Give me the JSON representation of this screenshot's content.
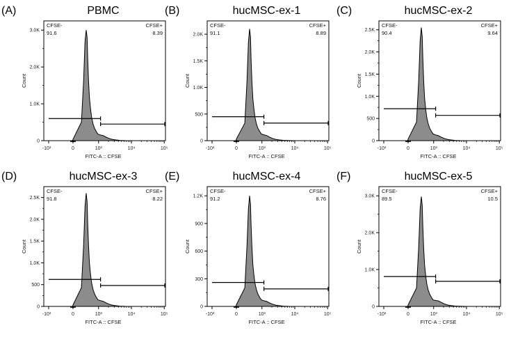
{
  "chart_data": [
    {
      "type": "histogram",
      "panel_label": "(A)",
      "title": "PBMC",
      "xlabel": "FITC-A :: CFSE",
      "ylabel": "Count",
      "x_scale": "biexponential",
      "x_ticks": [
        "-10³",
        "0",
        "10³",
        "10⁴",
        "10⁵"
      ],
      "y_ticks": [
        "0",
        "1.0K",
        "2.0K",
        "3.0K"
      ],
      "y_tick_values": [
        0,
        1000,
        2000,
        3000
      ],
      "ylim": [
        0,
        3250
      ],
      "histogram_fill": "#8c8c8c",
      "histogram": {
        "x": [
          -10,
          -3,
          0,
          120,
          170,
          210,
          245,
          275,
          300,
          330,
          370,
          420,
          480,
          560,
          660,
          800,
          950,
          1150,
          1400,
          1700,
          2100,
          2600,
          3300,
          4500,
          6500,
          10000
        ],
        "y": [
          0,
          10,
          40,
          500,
          1600,
          2700,
          3000,
          2800,
          2200,
          1600,
          1150,
          850,
          620,
          450,
          330,
          240,
          175,
          155,
          135,
          95,
          60,
          35,
          20,
          8,
          2,
          0
        ]
      },
      "gates": [
        {
          "name": "CFSE-",
          "value": "91.6",
          "x_range": [
            -1000,
            1150
          ],
          "y": 600
        },
        {
          "name": "CFSE+",
          "value": "8.39",
          "x_range": [
            1150,
            200000
          ],
          "y": 450
        }
      ]
    },
    {
      "type": "histogram",
      "panel_label": "(B)",
      "title": "hucMSC-ex-1",
      "xlabel": "FITC-A :: CFSE",
      "ylabel": "Count",
      "x_scale": "biexponential",
      "x_ticks": [
        "-10³",
        "0",
        "10³",
        "10⁴",
        "10⁵"
      ],
      "y_ticks": [
        "0",
        "500",
        "1.0K",
        "1.5K",
        "2.0K"
      ],
      "y_tick_values": [
        0,
        500,
        1000,
        1500,
        2000
      ],
      "ylim": [
        0,
        2250
      ],
      "histogram_fill": "#8c8c8c",
      "histogram": {
        "x": [
          -10,
          -3,
          0,
          120,
          170,
          210,
          245,
          275,
          300,
          330,
          370,
          420,
          480,
          560,
          660,
          800,
          950,
          1150,
          1400,
          1700,
          2100,
          2600,
          3300,
          4500,
          6500,
          10000
        ],
        "y": [
          0,
          8,
          30,
          330,
          1100,
          1850,
          2100,
          1950,
          1500,
          1100,
          790,
          590,
          430,
          310,
          230,
          170,
          125,
          110,
          95,
          68,
          42,
          25,
          14,
          6,
          2,
          0
        ]
      },
      "gates": [
        {
          "name": "CFSE-",
          "value": "91.1",
          "x_range": [
            -1000,
            1150
          ],
          "y": 450
        },
        {
          "name": "CFSE+",
          "value": "8.89",
          "x_range": [
            1150,
            200000
          ],
          "y": 330
        }
      ]
    },
    {
      "type": "histogram",
      "panel_label": "(C)",
      "title": "hucMSC-ex-2",
      "xlabel": "FITC-A :: CFSE",
      "ylabel": "Count",
      "x_scale": "biexponential",
      "x_ticks": [
        "-10³",
        "0",
        "10³",
        "10⁴",
        "10⁵"
      ],
      "y_ticks": [
        "0",
        "500",
        "1.0K",
        "1.5K",
        "2.0K",
        "2.5K"
      ],
      "y_tick_values": [
        0,
        500,
        1000,
        1500,
        2000,
        2500
      ],
      "ylim": [
        0,
        2700
      ],
      "histogram_fill": "#8c8c8c",
      "histogram": {
        "x": [
          -10,
          -3,
          0,
          120,
          170,
          210,
          245,
          275,
          300,
          330,
          370,
          420,
          480,
          560,
          660,
          800,
          950,
          1150,
          1400,
          1700,
          2100,
          2600,
          3300,
          4500,
          6500,
          10000
        ],
        "y": [
          0,
          10,
          35,
          420,
          1350,
          2250,
          2550,
          2350,
          1850,
          1350,
          960,
          710,
          520,
          380,
          280,
          205,
          150,
          130,
          112,
          80,
          50,
          30,
          17,
          7,
          2,
          0
        ]
      },
      "gates": [
        {
          "name": "CFSE-",
          "value": "90.4",
          "x_range": [
            -1000,
            1150
          ],
          "y": 720
        },
        {
          "name": "CFSE+",
          "value": "9.64",
          "x_range": [
            1150,
            200000
          ],
          "y": 570
        }
      ]
    },
    {
      "type": "histogram",
      "panel_label": "(D)",
      "title": "hucMSC-ex-3",
      "xlabel": "FITC-A :: CFSE",
      "ylabel": "Count",
      "x_scale": "biexponential",
      "x_ticks": [
        "-10³",
        "0",
        "10³",
        "10⁴",
        "10⁵"
      ],
      "y_ticks": [
        "0",
        "500",
        "1.0K",
        "1.5K",
        "2.0K",
        "2.5K"
      ],
      "y_tick_values": [
        0,
        500,
        1000,
        1500,
        2000,
        2500
      ],
      "ylim": [
        0,
        2750
      ],
      "histogram_fill": "#8c8c8c",
      "histogram": {
        "x": [
          -10,
          -3,
          0,
          120,
          170,
          210,
          245,
          275,
          300,
          330,
          370,
          420,
          480,
          560,
          660,
          800,
          950,
          1150,
          1400,
          1700,
          2100,
          2600,
          3300,
          4500,
          6500,
          10000
        ],
        "y": [
          0,
          10,
          35,
          430,
          1380,
          2300,
          2600,
          2400,
          1880,
          1380,
          980,
          720,
          530,
          385,
          285,
          205,
          150,
          132,
          115,
          82,
          51,
          30,
          17,
          7,
          2,
          0
        ]
      },
      "gates": [
        {
          "name": "CFSE-",
          "value": "91.8",
          "x_range": [
            -1000,
            1150
          ],
          "y": 620
        },
        {
          "name": "CFSE+",
          "value": "8.22",
          "x_range": [
            1150,
            200000
          ],
          "y": 480
        }
      ]
    },
    {
      "type": "histogram",
      "panel_label": "(E)",
      "title": "hucMSC-ex-4",
      "xlabel": "FITC-A :: CFSE",
      "ylabel": "Count",
      "x_scale": "biexponential",
      "x_ticks": [
        "-10³",
        "0",
        "10³",
        "10⁴",
        "10⁵"
      ],
      "y_ticks": [
        "0",
        "300",
        "600",
        "900",
        "1.2K"
      ],
      "y_tick_values": [
        0,
        300,
        600,
        900,
        1200
      ],
      "ylim": [
        0,
        1300
      ],
      "histogram_fill": "#8c8c8c",
      "histogram": {
        "x": [
          -10,
          -3,
          0,
          120,
          170,
          210,
          245,
          275,
          300,
          330,
          370,
          420,
          480,
          560,
          660,
          800,
          950,
          1150,
          1400,
          1700,
          2100,
          2600,
          3300,
          4500,
          6500,
          10000
        ],
        "y": [
          0,
          5,
          18,
          200,
          650,
          1060,
          1200,
          1110,
          870,
          640,
          455,
          335,
          245,
          180,
          132,
          96,
          70,
          62,
          54,
          38,
          24,
          14,
          8,
          3,
          1,
          0
        ]
      },
      "gates": [
        {
          "name": "CFSE-",
          "value": "91.2",
          "x_range": [
            -1000,
            1150
          ],
          "y": 260
        },
        {
          "name": "CFSE+",
          "value": "8.76",
          "x_range": [
            1150,
            200000
          ],
          "y": 190
        }
      ]
    },
    {
      "type": "histogram",
      "panel_label": "(F)",
      "title": "hucMSC-ex-5",
      "xlabel": "FITC-A :: CFSE",
      "ylabel": "Count",
      "x_scale": "biexponential",
      "x_ticks": [
        "-10³",
        "0",
        "10³",
        "10⁴",
        "10⁵"
      ],
      "y_ticks": [
        "0",
        "1.0K",
        "2.0K",
        "3.0K"
      ],
      "y_tick_values": [
        0,
        1000,
        2000,
        3000
      ],
      "ylim": [
        0,
        3250
      ],
      "histogram_fill": "#8c8c8c",
      "histogram": {
        "x": [
          -10,
          -3,
          0,
          120,
          170,
          210,
          245,
          275,
          300,
          330,
          370,
          420,
          480,
          560,
          660,
          800,
          950,
          1150,
          1400,
          1700,
          2100,
          2600,
          3300,
          4500,
          6500,
          10000
        ],
        "y": [
          0,
          10,
          40,
          500,
          1600,
          2650,
          2980,
          2750,
          2150,
          1580,
          1130,
          830,
          610,
          445,
          330,
          240,
          175,
          160,
          150,
          110,
          70,
          40,
          22,
          9,
          3,
          0
        ]
      },
      "gates": [
        {
          "name": "CFSE-",
          "value": "89.5",
          "x_range": [
            -1000,
            1150
          ],
          "y": 810
        },
        {
          "name": "CFSE+",
          "value": "10.5",
          "x_range": [
            1150,
            200000
          ],
          "y": 680
        }
      ]
    }
  ]
}
